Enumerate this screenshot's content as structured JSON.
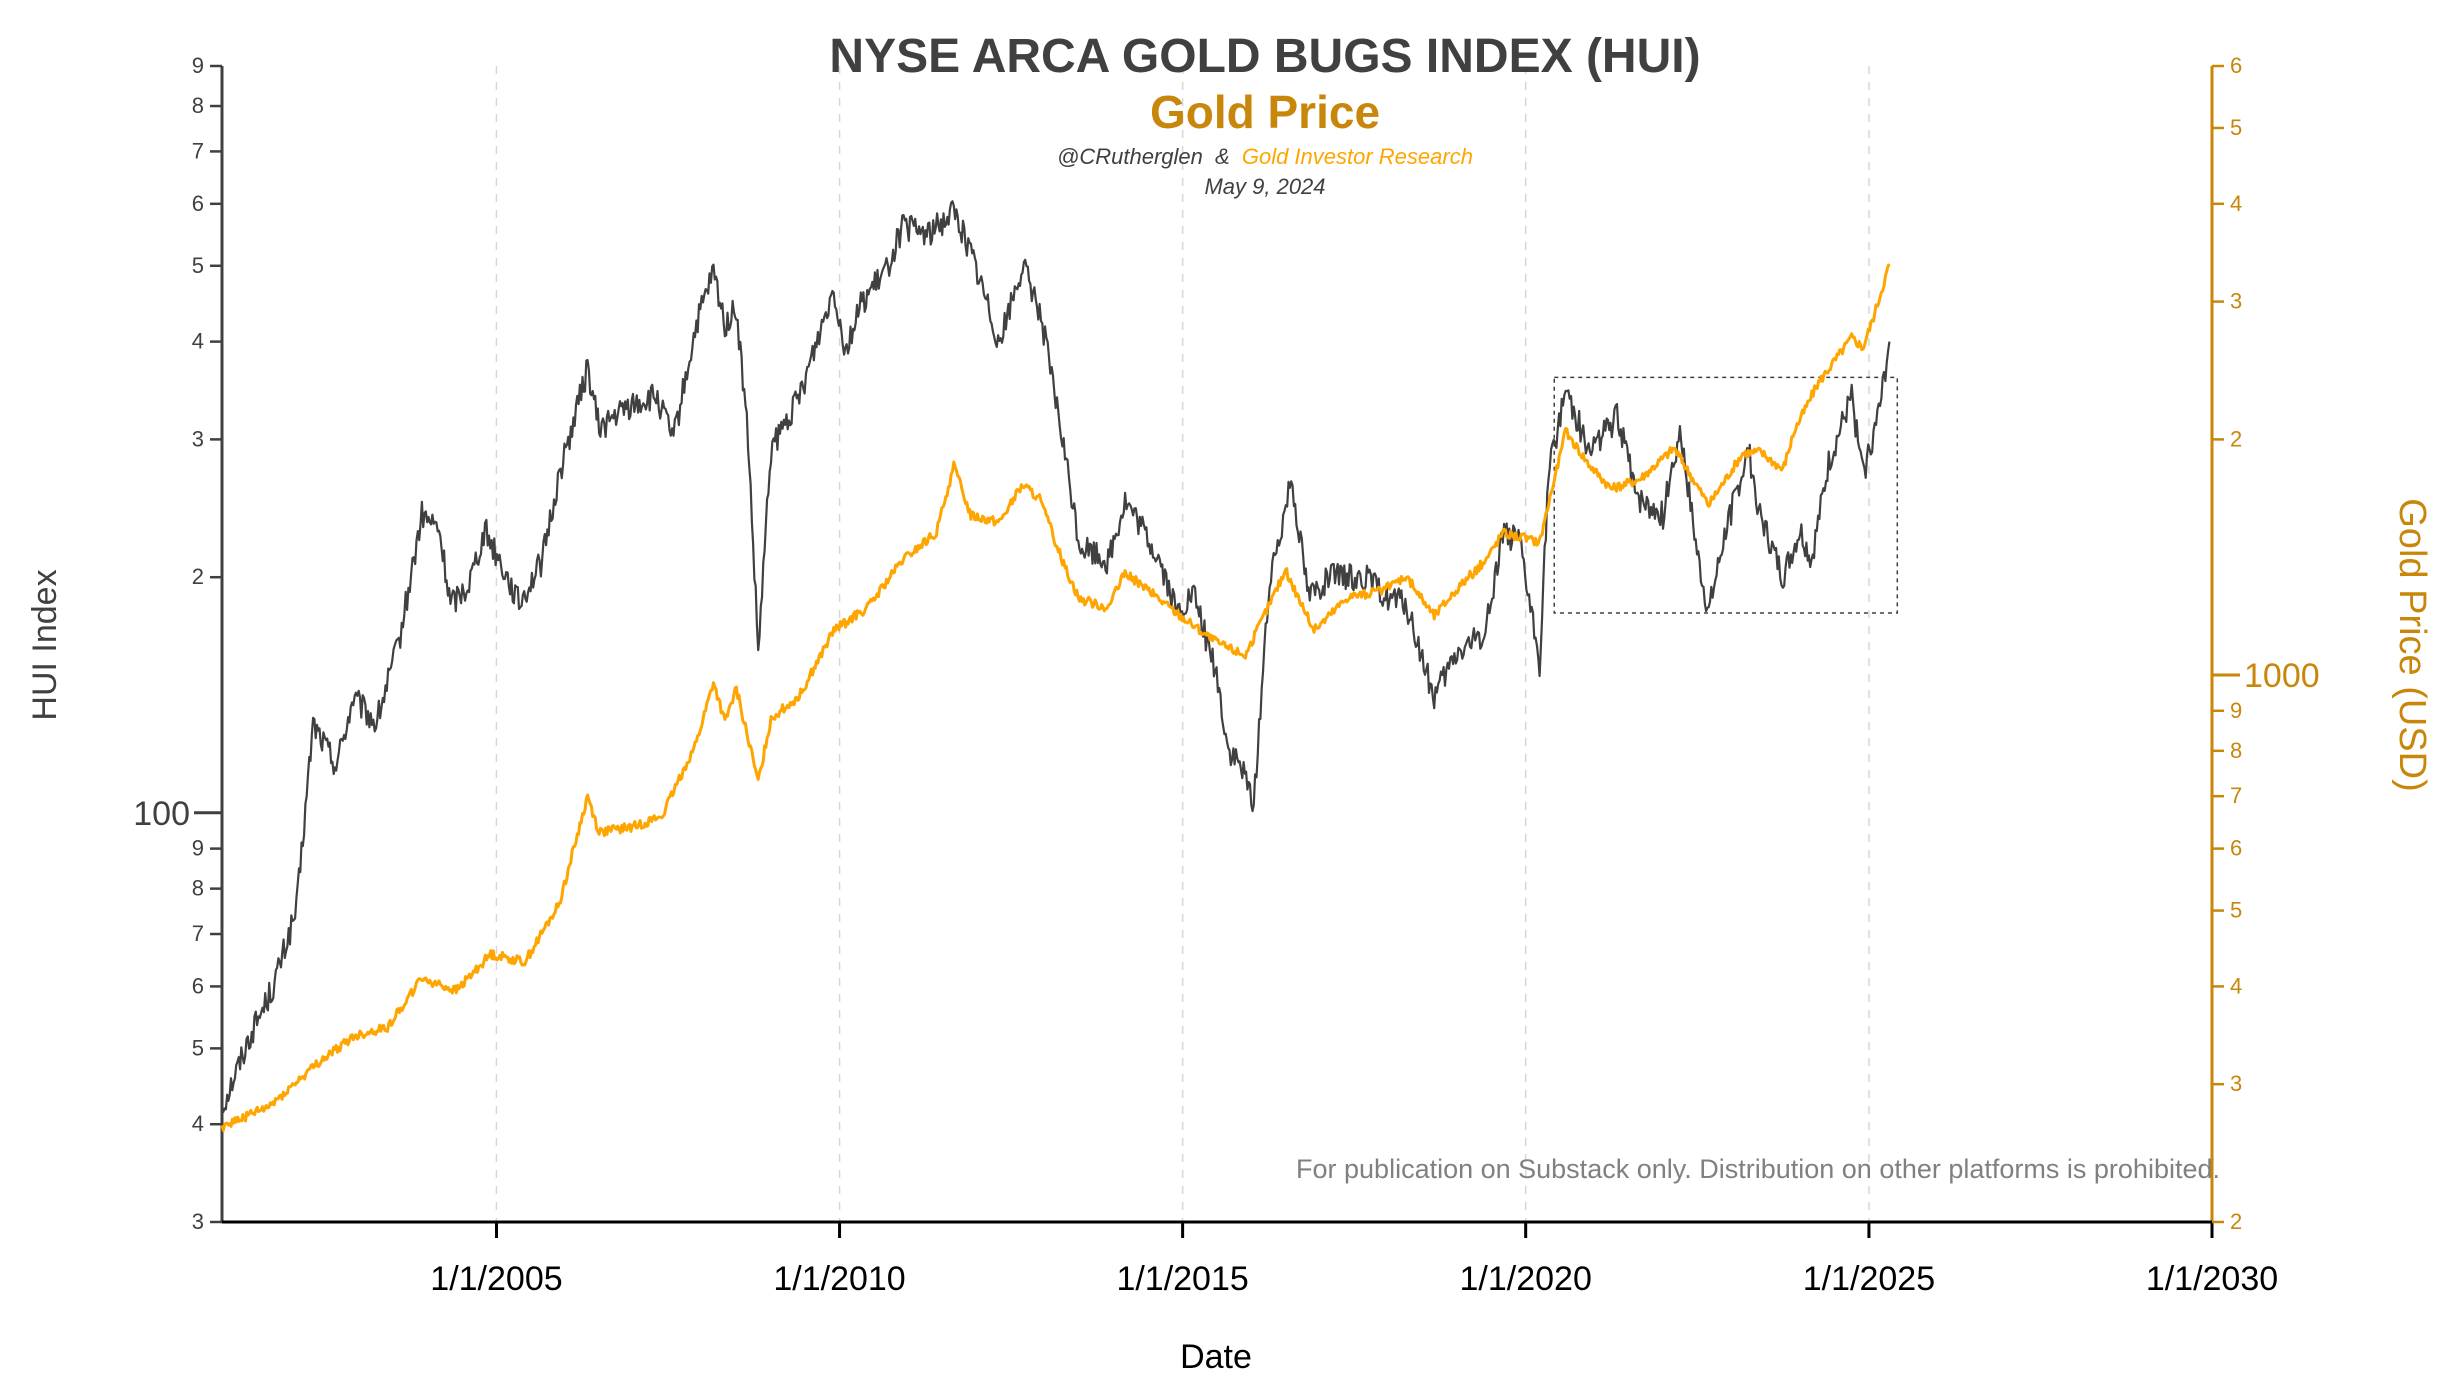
{
  "chart_data": {
    "type": "line",
    "title": "NYSE ARCA GOLD BUGS INDEX (HUI)",
    "subtitle": "Gold Price",
    "credit_author": "@CRutherglen",
    "credit_amp": "&",
    "credit_org": "Gold Investor Research",
    "date": "May 9, 2024",
    "watermark": "For publication on Substack only. Distribution on other platforms is prohibited.",
    "xlabel": "Date",
    "ylabel_left": "HUI Index",
    "ylabel_right": "Gold Price (USD)",
    "x_range": [
      "2001-01-01",
      "2030-01-01"
    ],
    "x_ticks": [
      "1/1/2005",
      "1/1/2010",
      "1/1/2015",
      "1/1/2020",
      "1/1/2025",
      "1/1/2030"
    ],
    "x_grid": "dashed vertical at major ticks",
    "y_left": {
      "scale": "log",
      "range": [
        30,
        900
      ],
      "major_tick_labels": [
        "100"
      ],
      "minor_tick_labels": [
        "3",
        "4",
        "5",
        "6",
        "7",
        "8",
        "9",
        "2",
        "3",
        "4",
        "5",
        "6",
        "7",
        "8",
        "9"
      ]
    },
    "y_right": {
      "scale": "log",
      "range": [
        200,
        6000
      ],
      "major_tick_labels": [
        "1000"
      ],
      "minor_tick_labels": [
        "2",
        "3",
        "4",
        "5",
        "6",
        "7",
        "8",
        "9",
        "2",
        "3",
        "4",
        "5",
        "6"
      ]
    },
    "colors": {
      "hui": "#404040",
      "gold": "#FFA500",
      "gold_axis": "#C8860A",
      "title": "#404040",
      "subtitle": "#C8860A",
      "watermark": "#808080"
    },
    "annotations": [
      {
        "type": "dashed-rectangle",
        "x_range": [
          "2020-06-01",
          "2025-06-01"
        ],
        "y_left_range": [
          180,
          360
        ]
      }
    ],
    "series": [
      {
        "name": "HUI Index",
        "axis": "left",
        "color": "#404040",
        "points": [
          [
            "2001-01-01",
            42
          ],
          [
            "2001-06-01",
            52
          ],
          [
            "2001-10-01",
            60
          ],
          [
            "2002-02-01",
            75
          ],
          [
            "2002-05-01",
            130
          ],
          [
            "2002-09-01",
            115
          ],
          [
            "2002-12-01",
            140
          ],
          [
            "2003-04-01",
            130
          ],
          [
            "2003-08-01",
            165
          ],
          [
            "2003-12-01",
            240
          ],
          [
            "2004-03-01",
            230
          ],
          [
            "2004-05-01",
            185
          ],
          [
            "2004-08-01",
            195
          ],
          [
            "2004-11-01",
            230
          ],
          [
            "2005-03-01",
            200
          ],
          [
            "2005-05-01",
            185
          ],
          [
            "2005-09-01",
            210
          ],
          [
            "2005-12-01",
            270
          ],
          [
            "2006-05-01",
            370
          ],
          [
            "2006-07-01",
            310
          ],
          [
            "2006-12-01",
            330
          ],
          [
            "2007-05-01",
            340
          ],
          [
            "2007-08-01",
            300
          ],
          [
            "2007-12-01",
            420
          ],
          [
            "2008-03-01",
            490
          ],
          [
            "2008-05-01",
            420
          ],
          [
            "2008-07-01",
            440
          ],
          [
            "2008-09-01",
            300
          ],
          [
            "2008-10-25",
            160
          ],
          [
            "2009-01-01",
            290
          ],
          [
            "2009-06-01",
            340
          ],
          [
            "2009-12-01",
            470
          ],
          [
            "2010-02-01",
            390
          ],
          [
            "2010-05-01",
            450
          ],
          [
            "2010-09-01",
            490
          ],
          [
            "2010-12-01",
            560
          ],
          [
            "2011-05-01",
            550
          ],
          [
            "2011-09-01",
            590
          ],
          [
            "2011-12-01",
            520
          ],
          [
            "2012-05-01",
            400
          ],
          [
            "2012-09-01",
            500
          ],
          [
            "2012-12-01",
            440
          ],
          [
            "2013-04-01",
            300
          ],
          [
            "2013-07-01",
            220
          ],
          [
            "2013-12-01",
            210
          ],
          [
            "2014-03-01",
            250
          ],
          [
            "2014-06-01",
            230
          ],
          [
            "2014-09-01",
            210
          ],
          [
            "2014-12-01",
            180
          ],
          [
            "2015-03-01",
            190
          ],
          [
            "2015-07-01",
            150
          ],
          [
            "2015-09-01",
            120
          ],
          [
            "2015-11-01",
            115
          ],
          [
            "2016-01-15",
            103
          ],
          [
            "2016-04-01",
            190
          ],
          [
            "2016-08-01",
            270
          ],
          [
            "2016-11-01",
            190
          ],
          [
            "2017-03-01",
            200
          ],
          [
            "2017-09-01",
            200
          ],
          [
            "2017-12-01",
            190
          ],
          [
            "2018-04-01",
            185
          ],
          [
            "2018-09-01",
            140
          ],
          [
            "2019-01-01",
            160
          ],
          [
            "2019-06-01",
            170
          ],
          [
            "2019-09-01",
            230
          ],
          [
            "2019-12-01",
            220
          ],
          [
            "2020-03-15",
            155
          ],
          [
            "2020-05-01",
            270
          ],
          [
            "2020-08-01",
            350
          ],
          [
            "2020-12-01",
            290
          ],
          [
            "2021-05-01",
            320
          ],
          [
            "2021-09-01",
            250
          ],
          [
            "2022-01-01",
            240
          ],
          [
            "2022-04-01",
            310
          ],
          [
            "2022-07-01",
            215
          ],
          [
            "2022-09-01",
            180
          ],
          [
            "2022-12-01",
            230
          ],
          [
            "2023-04-01",
            290
          ],
          [
            "2023-06-01",
            240
          ],
          [
            "2023-10-01",
            200
          ],
          [
            "2024-01-01",
            230
          ],
          [
            "2024-03-01",
            210
          ],
          [
            "2024-06-01",
            280
          ],
          [
            "2024-10-01",
            340
          ],
          [
            "2024-12-01",
            270
          ],
          [
            "2025-03-01",
            330
          ],
          [
            "2025-04-20",
            400
          ]
        ]
      },
      {
        "name": "Gold Price",
        "axis": "right",
        "color": "#FFA500",
        "points": [
          [
            "2001-01-01",
            265
          ],
          [
            "2001-09-01",
            280
          ],
          [
            "2002-06-01",
            320
          ],
          [
            "2002-12-01",
            345
          ],
          [
            "2003-06-01",
            355
          ],
          [
            "2003-12-01",
            410
          ],
          [
            "2004-06-01",
            395
          ],
          [
            "2004-12-01",
            440
          ],
          [
            "2005-06-01",
            430
          ],
          [
            "2005-12-01",
            510
          ],
          [
            "2006-05-01",
            700
          ],
          [
            "2006-07-01",
            630
          ],
          [
            "2007-01-01",
            640
          ],
          [
            "2007-06-01",
            660
          ],
          [
            "2007-12-01",
            820
          ],
          [
            "2008-03-01",
            980
          ],
          [
            "2008-05-01",
            870
          ],
          [
            "2008-07-01",
            960
          ],
          [
            "2008-10-25",
            730
          ],
          [
            "2009-01-01",
            880
          ],
          [
            "2009-06-01",
            940
          ],
          [
            "2009-12-01",
            1140
          ],
          [
            "2010-06-01",
            1220
          ],
          [
            "2010-12-01",
            1400
          ],
          [
            "2011-06-01",
            1520
          ],
          [
            "2011-09-01",
            1850
          ],
          [
            "2011-12-01",
            1600
          ],
          [
            "2012-05-01",
            1570
          ],
          [
            "2012-09-01",
            1750
          ],
          [
            "2012-12-01",
            1680
          ],
          [
            "2013-04-01",
            1400
          ],
          [
            "2013-07-01",
            1250
          ],
          [
            "2013-12-01",
            1220
          ],
          [
            "2014-03-01",
            1350
          ],
          [
            "2014-06-01",
            1300
          ],
          [
            "2014-12-01",
            1200
          ],
          [
            "2015-07-01",
            1100
          ],
          [
            "2015-12-01",
            1060
          ],
          [
            "2016-07-01",
            1360
          ],
          [
            "2016-12-01",
            1140
          ],
          [
            "2017-06-01",
            1260
          ],
          [
            "2017-12-01",
            1280
          ],
          [
            "2018-04-01",
            1340
          ],
          [
            "2018-09-01",
            1190
          ],
          [
            "2019-01-01",
            1290
          ],
          [
            "2019-06-01",
            1400
          ],
          [
            "2019-09-01",
            1520
          ],
          [
            "2020-03-15",
            1480
          ],
          [
            "2020-08-01",
            2050
          ],
          [
            "2020-12-01",
            1860
          ],
          [
            "2021-04-01",
            1730
          ],
          [
            "2021-09-01",
            1780
          ],
          [
            "2022-03-01",
            1950
          ],
          [
            "2022-09-01",
            1650
          ],
          [
            "2023-03-01",
            1920
          ],
          [
            "2023-06-01",
            1930
          ],
          [
            "2023-10-01",
            1830
          ],
          [
            "2023-12-01",
            2050
          ],
          [
            "2024-04-01",
            2350
          ],
          [
            "2024-10-01",
            2700
          ],
          [
            "2024-12-01",
            2620
          ],
          [
            "2025-02-01",
            2900
          ],
          [
            "2025-04-20",
            3350
          ]
        ]
      }
    ]
  }
}
